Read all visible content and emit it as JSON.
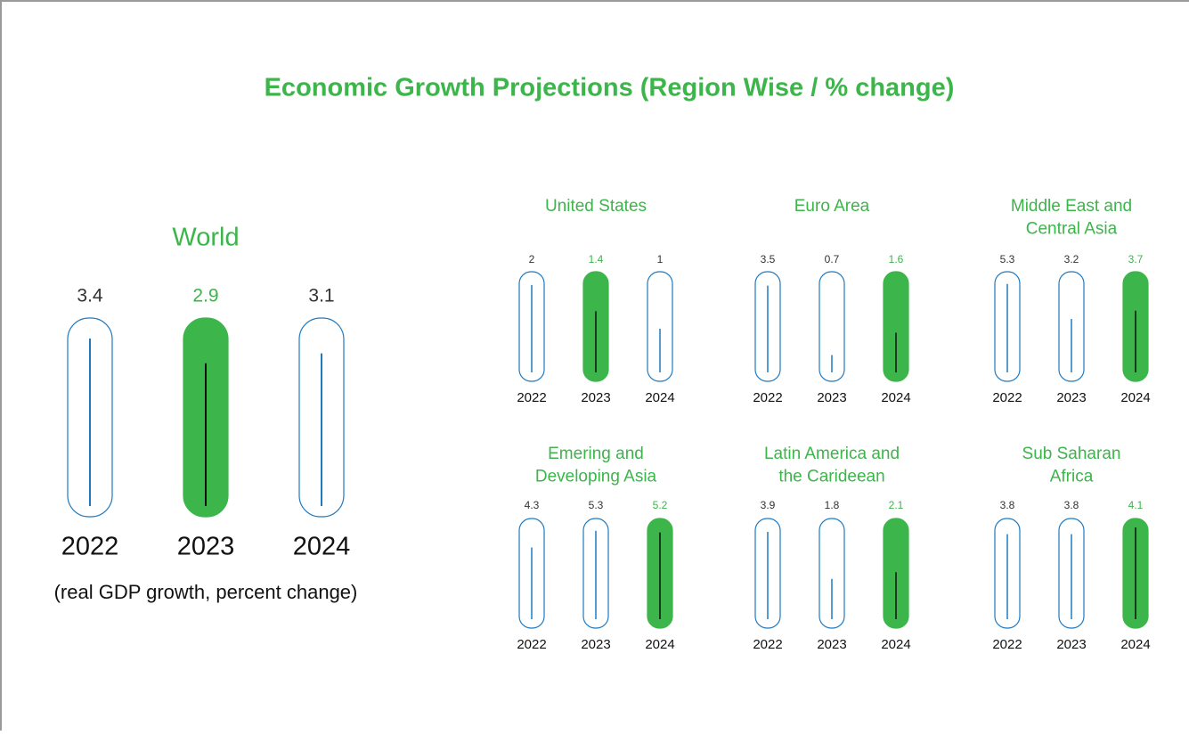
{
  "title": "Economic Growth Projections (Region Wise / % change)",
  "chart_data": [
    {
      "type": "bar",
      "title": [
        "World"
      ],
      "note": "(real GDP growth, percent change)",
      "categories": [
        "2022",
        "2023",
        "2024"
      ],
      "values": [
        3.4,
        2.9,
        3.1
      ],
      "ylim": [
        0,
        3.6
      ],
      "color": "#1f7ac0",
      "highlight": 1,
      "highlight_color": "#3cb54a"
    },
    {
      "type": "bar",
      "title": [
        "United States"
      ],
      "categories": [
        "2022",
        "2023",
        "2024"
      ],
      "values": [
        2.0,
        1.4,
        1.0
      ],
      "ylim": [
        0,
        2.1
      ],
      "color": "#1f7ac0",
      "highlight": 1,
      "highlight_color": "#3cb54a"
    },
    {
      "type": "bar",
      "title": [
        "Euro Area"
      ],
      "categories": [
        "2022",
        "2023",
        "2024"
      ],
      "values": [
        3.5,
        0.7,
        1.6
      ],
      "ylim": [
        0,
        3.7
      ],
      "color": "#1f7ac0",
      "highlight": 2,
      "highlight_color": "#3cb54a"
    },
    {
      "type": "bar",
      "title": [
        "Middle East and",
        "Central Asia"
      ],
      "categories": [
        "2022",
        "2023",
        "2024"
      ],
      "values": [
        5.3,
        3.2,
        3.7
      ],
      "ylim": [
        0,
        5.5
      ],
      "color": "#1f7ac0",
      "highlight": 2,
      "highlight_color": "#3cb54a"
    },
    {
      "type": "bar",
      "title": [
        "Emering and",
        "Developing Asia"
      ],
      "categories": [
        "2022",
        "2023",
        "2024"
      ],
      "values": [
        4.3,
        5.3,
        5.2
      ],
      "ylim": [
        0,
        5.5
      ],
      "color": "#1f7ac0",
      "highlight": 2,
      "highlight_color": "#3cb54a"
    },
    {
      "type": "bar",
      "title": [
        "Latin America and",
        "the Carideean"
      ],
      "categories": [
        "2022",
        "2023",
        "2024"
      ],
      "values": [
        3.9,
        1.8,
        2.1
      ],
      "ylim": [
        0,
        4.1
      ],
      "color": "#1f7ac0",
      "highlight": 2,
      "highlight_color": "#3cb54a"
    },
    {
      "type": "bar",
      "title": [
        "Sub Saharan",
        "Africa"
      ],
      "categories": [
        "2022",
        "2023",
        "2024"
      ],
      "values": [
        3.8,
        3.8,
        4.1
      ],
      "ylim": [
        0,
        4.1
      ],
      "color": "#1f7ac0",
      "highlight": 2,
      "highlight_color": "#3cb54a"
    }
  ]
}
